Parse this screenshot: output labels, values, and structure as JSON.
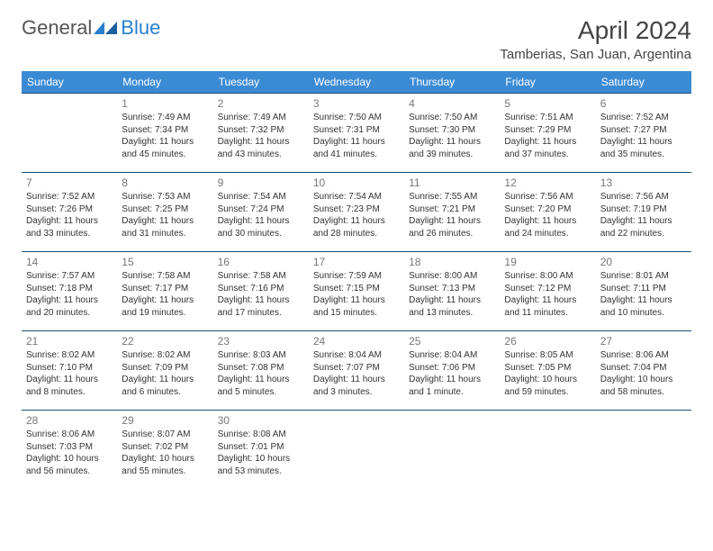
{
  "logo": {
    "part1": "General",
    "part2": "Blue"
  },
  "title": "April 2024",
  "location": "Tamberias, San Juan, Argentina",
  "colors": {
    "header_bg": "#3b8bd4",
    "header_text": "#ffffff",
    "border": "#1a4e7a",
    "daynum": "#777777",
    "text": "#333333",
    "logo_gray": "#555555",
    "logo_blue": "#2a7fcf"
  },
  "dayHeaders": [
    "Sunday",
    "Monday",
    "Tuesday",
    "Wednesday",
    "Thursday",
    "Friday",
    "Saturday"
  ],
  "weeks": [
    [
      null,
      {
        "n": "1",
        "sr": "7:49 AM",
        "ss": "7:34 PM",
        "dl": "11 hours and 45 minutes."
      },
      {
        "n": "2",
        "sr": "7:49 AM",
        "ss": "7:32 PM",
        "dl": "11 hours and 43 minutes."
      },
      {
        "n": "3",
        "sr": "7:50 AM",
        "ss": "7:31 PM",
        "dl": "11 hours and 41 minutes."
      },
      {
        "n": "4",
        "sr": "7:50 AM",
        "ss": "7:30 PM",
        "dl": "11 hours and 39 minutes."
      },
      {
        "n": "5",
        "sr": "7:51 AM",
        "ss": "7:29 PM",
        "dl": "11 hours and 37 minutes."
      },
      {
        "n": "6",
        "sr": "7:52 AM",
        "ss": "7:27 PM",
        "dl": "11 hours and 35 minutes."
      }
    ],
    [
      {
        "n": "7",
        "sr": "7:52 AM",
        "ss": "7:26 PM",
        "dl": "11 hours and 33 minutes."
      },
      {
        "n": "8",
        "sr": "7:53 AM",
        "ss": "7:25 PM",
        "dl": "11 hours and 31 minutes."
      },
      {
        "n": "9",
        "sr": "7:54 AM",
        "ss": "7:24 PM",
        "dl": "11 hours and 30 minutes."
      },
      {
        "n": "10",
        "sr": "7:54 AM",
        "ss": "7:23 PM",
        "dl": "11 hours and 28 minutes."
      },
      {
        "n": "11",
        "sr": "7:55 AM",
        "ss": "7:21 PM",
        "dl": "11 hours and 26 minutes."
      },
      {
        "n": "12",
        "sr": "7:56 AM",
        "ss": "7:20 PM",
        "dl": "11 hours and 24 minutes."
      },
      {
        "n": "13",
        "sr": "7:56 AM",
        "ss": "7:19 PM",
        "dl": "11 hours and 22 minutes."
      }
    ],
    [
      {
        "n": "14",
        "sr": "7:57 AM",
        "ss": "7:18 PM",
        "dl": "11 hours and 20 minutes."
      },
      {
        "n": "15",
        "sr": "7:58 AM",
        "ss": "7:17 PM",
        "dl": "11 hours and 19 minutes."
      },
      {
        "n": "16",
        "sr": "7:58 AM",
        "ss": "7:16 PM",
        "dl": "11 hours and 17 minutes."
      },
      {
        "n": "17",
        "sr": "7:59 AM",
        "ss": "7:15 PM",
        "dl": "11 hours and 15 minutes."
      },
      {
        "n": "18",
        "sr": "8:00 AM",
        "ss": "7:13 PM",
        "dl": "11 hours and 13 minutes."
      },
      {
        "n": "19",
        "sr": "8:00 AM",
        "ss": "7:12 PM",
        "dl": "11 hours and 11 minutes."
      },
      {
        "n": "20",
        "sr": "8:01 AM",
        "ss": "7:11 PM",
        "dl": "11 hours and 10 minutes."
      }
    ],
    [
      {
        "n": "21",
        "sr": "8:02 AM",
        "ss": "7:10 PM",
        "dl": "11 hours and 8 minutes."
      },
      {
        "n": "22",
        "sr": "8:02 AM",
        "ss": "7:09 PM",
        "dl": "11 hours and 6 minutes."
      },
      {
        "n": "23",
        "sr": "8:03 AM",
        "ss": "7:08 PM",
        "dl": "11 hours and 5 minutes."
      },
      {
        "n": "24",
        "sr": "8:04 AM",
        "ss": "7:07 PM",
        "dl": "11 hours and 3 minutes."
      },
      {
        "n": "25",
        "sr": "8:04 AM",
        "ss": "7:06 PM",
        "dl": "11 hours and 1 minute."
      },
      {
        "n": "26",
        "sr": "8:05 AM",
        "ss": "7:05 PM",
        "dl": "10 hours and 59 minutes."
      },
      {
        "n": "27",
        "sr": "8:06 AM",
        "ss": "7:04 PM",
        "dl": "10 hours and 58 minutes."
      }
    ],
    [
      {
        "n": "28",
        "sr": "8:06 AM",
        "ss": "7:03 PM",
        "dl": "10 hours and 56 minutes."
      },
      {
        "n": "29",
        "sr": "8:07 AM",
        "ss": "7:02 PM",
        "dl": "10 hours and 55 minutes."
      },
      {
        "n": "30",
        "sr": "8:08 AM",
        "ss": "7:01 PM",
        "dl": "10 hours and 53 minutes."
      },
      null,
      null,
      null,
      null
    ]
  ],
  "labels": {
    "sunrise": "Sunrise:",
    "sunset": "Sunset:",
    "daylight": "Daylight:"
  }
}
